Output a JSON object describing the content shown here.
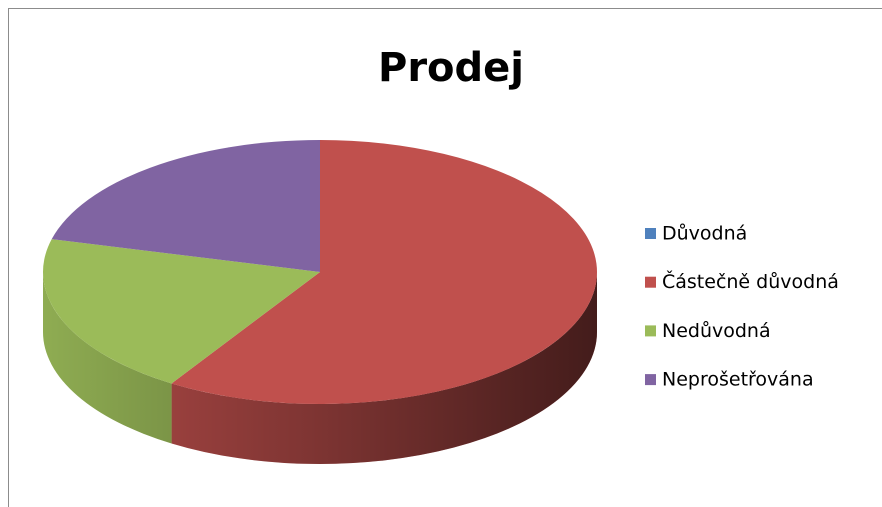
{
  "chart_data": {
    "type": "pie",
    "title": "Prodej",
    "categories": [
      "Důvodná",
      "Částečně důvodná",
      "Nedůvodná",
      "Neprošetřována"
    ],
    "values": [
      0,
      59,
      20,
      21
    ],
    "colors": [
      "#4f81bd",
      "#c0504d",
      "#9bbb59",
      "#8064a2"
    ],
    "legend": "right"
  }
}
